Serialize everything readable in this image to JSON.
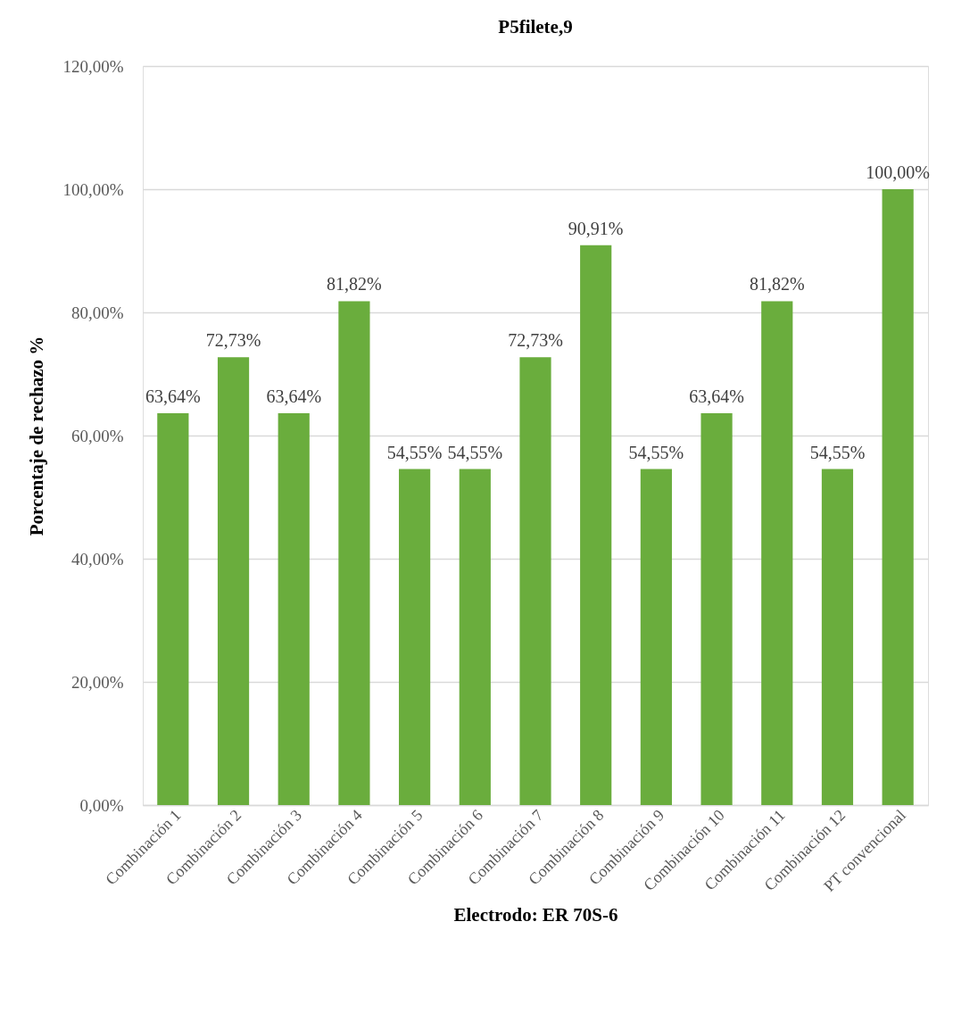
{
  "chart_data": {
    "type": "bar",
    "title": "P5filete,9",
    "xlabel": "Electrodo: ER 70S-6",
    "ylabel": "Porcentaje de rechazo %",
    "categories": [
      "Combinación 1",
      "Combinación 2",
      "Combinación 3",
      "Combinación 4",
      "Combinación 5",
      "Combinación 6",
      "Combinación 7",
      "Combinación 8",
      "Combinación 9",
      "Combinación 10",
      "Combinación 11",
      "Combinación 12",
      "PT convencional"
    ],
    "values": [
      63.64,
      72.73,
      63.64,
      81.82,
      54.55,
      54.55,
      72.73,
      90.91,
      54.55,
      63.64,
      81.82,
      54.55,
      100.0
    ],
    "value_labels": [
      "63,64%",
      "72,73%",
      "63,64%",
      "81,82%",
      "54,55%",
      "54,55%",
      "72,73%",
      "90,91%",
      "54,55%",
      "63,64%",
      "81,82%",
      "54,55%",
      "100,00%"
    ],
    "color": "#6aad3d",
    "ylim": [
      0,
      120
    ],
    "yticks": [
      {
        "value": 0,
        "label": "0,00%"
      },
      {
        "value": 20,
        "label": "20,00%"
      },
      {
        "value": 40,
        "label": "40,00%"
      },
      {
        "value": 60,
        "label": "60,00%"
      },
      {
        "value": 80,
        "label": "80,00%"
      },
      {
        "value": 100,
        "label": "100,00%"
      },
      {
        "value": 120,
        "label": "120,00%"
      }
    ],
    "grid": "y"
  }
}
